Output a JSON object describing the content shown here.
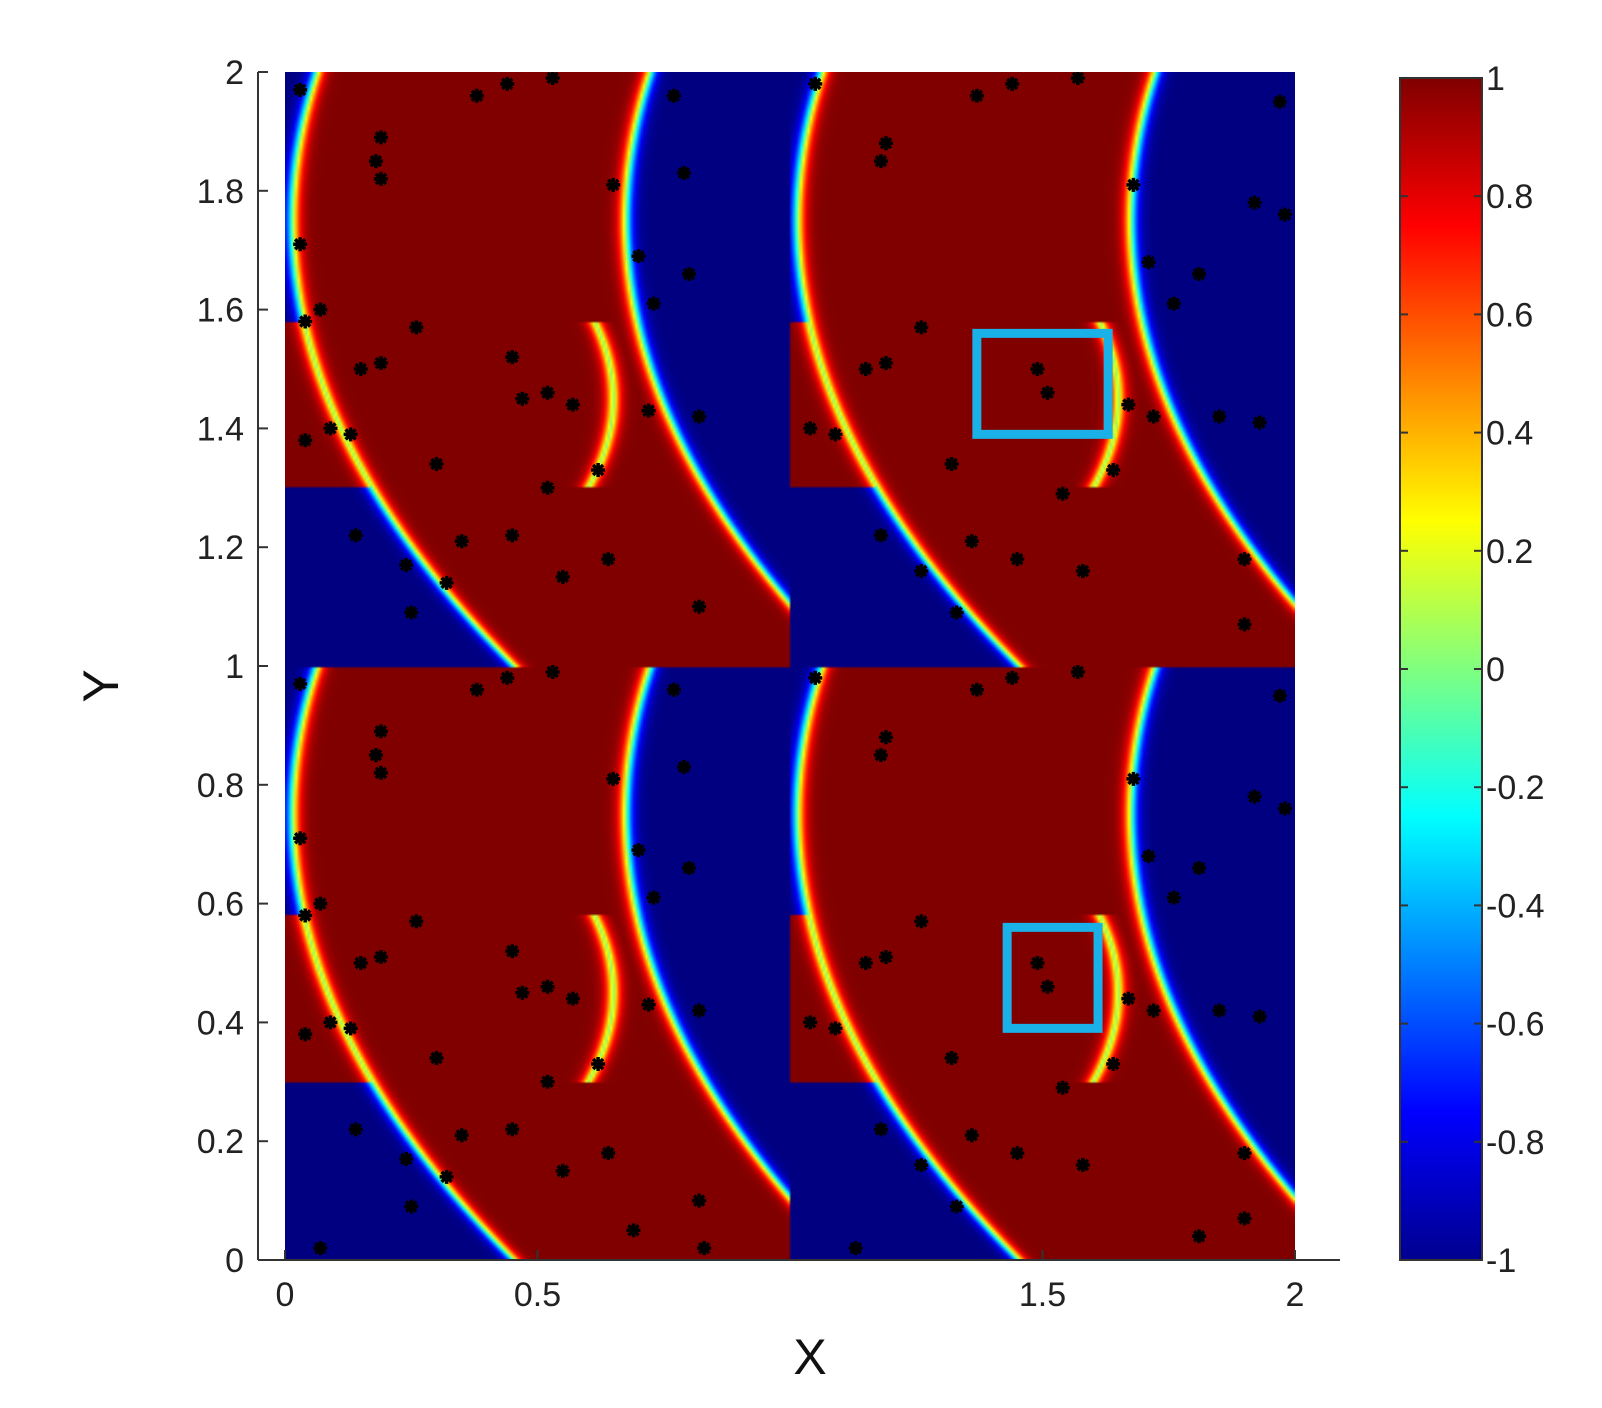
{
  "chart_data": {
    "type": "heatmap",
    "title": "",
    "xlabel": "X",
    "ylabel": "Y",
    "xlim": [
      0,
      2
    ],
    "ylim": [
      0,
      2
    ],
    "xticks": [
      "0",
      "0.5",
      "1.5",
      "2"
    ],
    "yticks": [
      "0",
      "0.2",
      "0.4",
      "0.6",
      "0.8",
      "1",
      "1.2",
      "1.4",
      "1.6",
      "1.8",
      "2"
    ],
    "colormap": "jet",
    "color_range": [
      -1,
      1
    ],
    "colorbar_ticks": [
      "1",
      "0.8",
      "0.6",
      "0.4",
      "0.2",
      "0",
      "-0.2",
      "-0.4",
      "-0.6",
      "-0.8",
      "-1"
    ],
    "colorbar_placement": "right",
    "pattern_period_y": 1,
    "pattern_period_x": 1,
    "highlight_boxes": [
      {
        "color": "#1ab0e8",
        "x0": 1.37,
        "x1": 1.63,
        "y0": 1.39,
        "y1": 1.56
      },
      {
        "color": "#1ab0e8",
        "x0": 1.43,
        "x1": 1.61,
        "y0": 0.39,
        "y1": 0.56
      }
    ],
    "scatter_points": [
      [
        0.03,
        1.97
      ],
      [
        0.38,
        1.96
      ],
      [
        0.44,
        1.98
      ],
      [
        0.53,
        1.99
      ],
      [
        0.77,
        1.96
      ],
      [
        1.05,
        1.98
      ],
      [
        1.37,
        1.96
      ],
      [
        1.44,
        1.98
      ],
      [
        1.57,
        1.99
      ],
      [
        1.97,
        1.95
      ],
      [
        0.18,
        1.85
      ],
      [
        0.19,
        1.89
      ],
      [
        0.19,
        1.82
      ],
      [
        0.79,
        1.83
      ],
      [
        1.18,
        1.85
      ],
      [
        1.19,
        1.88
      ],
      [
        1.92,
        1.78
      ],
      [
        1.98,
        1.76
      ],
      [
        0.65,
        1.81
      ],
      [
        1.68,
        1.81
      ],
      [
        0.03,
        1.71
      ],
      [
        0.7,
        1.69
      ],
      [
        1.71,
        1.68
      ],
      [
        0.8,
        1.66
      ],
      [
        1.81,
        1.66
      ],
      [
        0.73,
        1.61
      ],
      [
        1.76,
        1.61
      ],
      [
        0.04,
        1.58
      ],
      [
        0.07,
        1.6
      ],
      [
        0.15,
        1.5
      ],
      [
        0.19,
        1.51
      ],
      [
        0.26,
        1.57
      ],
      [
        0.45,
        1.52
      ],
      [
        0.47,
        1.45
      ],
      [
        0.52,
        1.46
      ],
      [
        0.57,
        1.44
      ],
      [
        0.04,
        1.38
      ],
      [
        0.09,
        1.4
      ],
      [
        0.13,
        1.39
      ],
      [
        0.3,
        1.34
      ],
      [
        0.52,
        1.3
      ],
      [
        0.62,
        1.33
      ],
      [
        0.72,
        1.43
      ],
      [
        0.82,
        1.42
      ],
      [
        1.04,
        1.4
      ],
      [
        1.09,
        1.39
      ],
      [
        1.15,
        1.5
      ],
      [
        1.19,
        1.51
      ],
      [
        1.26,
        1.57
      ],
      [
        1.49,
        1.5
      ],
      [
        1.51,
        1.46
      ],
      [
        1.67,
        1.44
      ],
      [
        1.72,
        1.42
      ],
      [
        1.85,
        1.42
      ],
      [
        1.93,
        1.41
      ],
      [
        1.32,
        1.34
      ],
      [
        1.54,
        1.29
      ],
      [
        1.64,
        1.33
      ],
      [
        0.14,
        1.22
      ],
      [
        0.24,
        1.17
      ],
      [
        0.32,
        1.14
      ],
      [
        0.35,
        1.21
      ],
      [
        0.45,
        1.22
      ],
      [
        0.55,
        1.15
      ],
      [
        0.64,
        1.18
      ],
      [
        0.82,
        1.1
      ],
      [
        1.18,
        1.22
      ],
      [
        1.26,
        1.16
      ],
      [
        1.36,
        1.21
      ],
      [
        1.45,
        1.18
      ],
      [
        1.58,
        1.16
      ],
      [
        1.9,
        1.18
      ],
      [
        0.25,
        1.09
      ],
      [
        1.33,
        1.09
      ],
      [
        1.9,
        1.07
      ],
      [
        0.03,
        0.97
      ],
      [
        0.38,
        0.96
      ],
      [
        0.44,
        0.98
      ],
      [
        0.53,
        0.99
      ],
      [
        0.77,
        0.96
      ],
      [
        1.05,
        0.98
      ],
      [
        1.37,
        0.96
      ],
      [
        1.44,
        0.98
      ],
      [
        1.57,
        0.99
      ],
      [
        1.97,
        0.95
      ],
      [
        0.18,
        0.85
      ],
      [
        0.19,
        0.89
      ],
      [
        0.19,
        0.82
      ],
      [
        0.79,
        0.83
      ],
      [
        1.18,
        0.85
      ],
      [
        1.19,
        0.88
      ],
      [
        1.92,
        0.78
      ],
      [
        1.98,
        0.76
      ],
      [
        0.65,
        0.81
      ],
      [
        1.68,
        0.81
      ],
      [
        0.03,
        0.71
      ],
      [
        0.7,
        0.69
      ],
      [
        1.71,
        0.68
      ],
      [
        0.8,
        0.66
      ],
      [
        1.81,
        0.66
      ],
      [
        0.73,
        0.61
      ],
      [
        1.76,
        0.61
      ],
      [
        0.04,
        0.58
      ],
      [
        0.07,
        0.6
      ],
      [
        0.15,
        0.5
      ],
      [
        0.19,
        0.51
      ],
      [
        0.26,
        0.57
      ],
      [
        0.45,
        0.52
      ],
      [
        0.47,
        0.45
      ],
      [
        0.52,
        0.46
      ],
      [
        0.57,
        0.44
      ],
      [
        0.04,
        0.38
      ],
      [
        0.09,
        0.4
      ],
      [
        0.13,
        0.39
      ],
      [
        0.3,
        0.34
      ],
      [
        0.52,
        0.3
      ],
      [
        0.62,
        0.33
      ],
      [
        0.72,
        0.43
      ],
      [
        0.82,
        0.42
      ],
      [
        1.04,
        0.4
      ],
      [
        1.09,
        0.39
      ],
      [
        1.15,
        0.5
      ],
      [
        1.19,
        0.51
      ],
      [
        1.26,
        0.57
      ],
      [
        1.49,
        0.5
      ],
      [
        1.51,
        0.46
      ],
      [
        1.67,
        0.44
      ],
      [
        1.72,
        0.42
      ],
      [
        1.85,
        0.42
      ],
      [
        1.93,
        0.41
      ],
      [
        1.32,
        0.34
      ],
      [
        1.54,
        0.29
      ],
      [
        1.64,
        0.33
      ],
      [
        0.14,
        0.22
      ],
      [
        0.24,
        0.17
      ],
      [
        0.32,
        0.14
      ],
      [
        0.35,
        0.21
      ],
      [
        0.45,
        0.22
      ],
      [
        0.55,
        0.15
      ],
      [
        0.64,
        0.18
      ],
      [
        0.82,
        0.1
      ],
      [
        1.18,
        0.22
      ],
      [
        1.26,
        0.16
      ],
      [
        1.36,
        0.21
      ],
      [
        1.45,
        0.18
      ],
      [
        1.58,
        0.16
      ],
      [
        1.9,
        0.18
      ],
      [
        0.25,
        0.09
      ],
      [
        1.33,
        0.09
      ],
      [
        1.9,
        0.07
      ],
      [
        0.07,
        0.02
      ],
      [
        0.83,
        0.02
      ],
      [
        0.69,
        0.05
      ],
      [
        1.13,
        0.02
      ],
      [
        1.81,
        0.04
      ]
    ]
  }
}
